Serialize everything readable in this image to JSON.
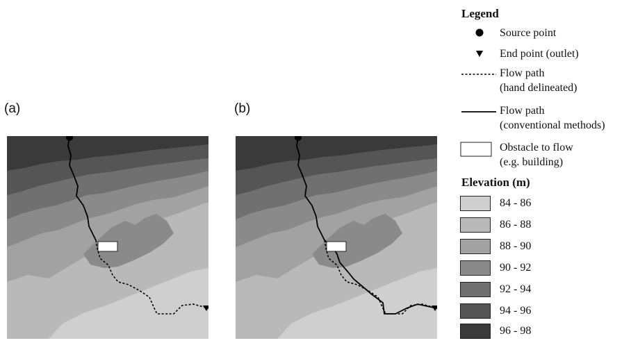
{
  "panels": [
    {
      "label": "(a)",
      "routed_path": "hand delineated"
    },
    {
      "label": "(b)",
      "routed_path": "conventional methods"
    }
  ],
  "legend": {
    "title": "Legend",
    "items": [
      {
        "symbol": "filled-circle",
        "label": "Source point"
      },
      {
        "symbol": "filled-triangle-down",
        "label": "End point (outlet)"
      },
      {
        "symbol": "dashed-line",
        "label": "Flow path",
        "sublabel": "(hand delineated)"
      },
      {
        "symbol": "solid-line",
        "label": "Flow path",
        "sublabel": "(conventional methods)"
      },
      {
        "symbol": "white-rectangle",
        "label": "Obstacle to flow",
        "sublabel": "(e.g. building)"
      }
    ]
  },
  "elevation": {
    "title": "Elevation (m)",
    "classes": [
      {
        "label": "84 - 86",
        "color": "#cfcfcf"
      },
      {
        "label": "86 - 88",
        "color": "#b9b9b9"
      },
      {
        "label": "88 - 90",
        "color": "#a2a2a2"
      },
      {
        "label": "90 - 92",
        "color": "#8a8a8a"
      },
      {
        "label": "92 - 94",
        "color": "#707070"
      },
      {
        "label": "94 - 96",
        "color": "#555555"
      },
      {
        "label": "96 - 98",
        "color": "#3a3a3a"
      }
    ]
  },
  "map_colors": {
    "obstacle_fill": "#ffffff",
    "path": "#000000"
  }
}
